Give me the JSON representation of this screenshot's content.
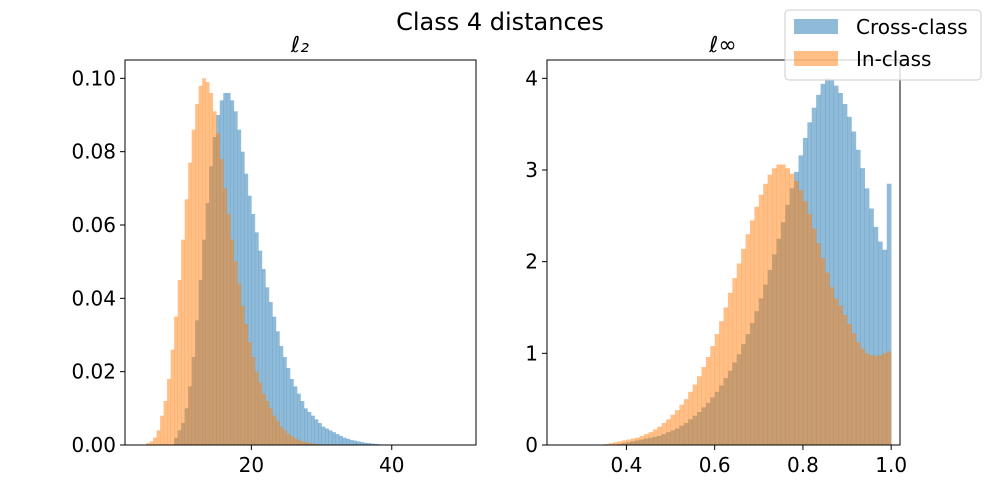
{
  "title": "Class 4 distances",
  "legend": {
    "placement": "top-right",
    "entries": [
      {
        "label": "Cross-class",
        "color": "#1f77b4",
        "alpha": 0.5
      },
      {
        "label": "In-class",
        "color": "#ff7f0e",
        "alpha": 0.5
      }
    ]
  },
  "chart_data": [
    {
      "type": "histogram",
      "title": "ℓ₂",
      "xlim": [
        2,
        52
      ],
      "ylim": [
        0,
        0.105
      ],
      "xticks": [
        20,
        40
      ],
      "xtick_labels": [
        "20",
        "40"
      ],
      "yticks": [
        0,
        0.02,
        0.04,
        0.06,
        0.08,
        0.1
      ],
      "ytick_labels": [
        "0.00",
        "0.02",
        "0.04",
        "0.06",
        "0.08",
        "0.10"
      ],
      "bin_start": 5.0,
      "bin_width": 0.5,
      "series": [
        {
          "name": "Cross-class",
          "color": "#1f77b4",
          "values": [
            0,
            0,
            0,
            0,
            0,
            0,
            0,
            0,
            0.002,
            0.004,
            0.006,
            0.01,
            0.016,
            0.024,
            0.034,
            0.045,
            0.056,
            0.066,
            0.076,
            0.084,
            0.09,
            0.094,
            0.096,
            0.096,
            0.094,
            0.091,
            0.086,
            0.08,
            0.074,
            0.068,
            0.063,
            0.058,
            0.053,
            0.048,
            0.043,
            0.039,
            0.035,
            0.031,
            0.027,
            0.024,
            0.021,
            0.018,
            0.016,
            0.014,
            0.012,
            0.01,
            0.009,
            0.008,
            0.007,
            0.006,
            0.005,
            0.0045,
            0.004,
            0.0035,
            0.003,
            0.0025,
            0.002,
            0.0017,
            0.0014,
            0.0012,
            0.001,
            0.0008,
            0.0006,
            0.0005,
            0.0004,
            0.0003,
            0.0002
          ]
        },
        {
          "name": "In-class",
          "color": "#ff7f0e",
          "values": [
            0.0005,
            0.001,
            0.002,
            0.004,
            0.008,
            0.012,
            0.018,
            0.026,
            0.035,
            0.045,
            0.056,
            0.067,
            0.077,
            0.086,
            0.093,
            0.098,
            0.1,
            0.099,
            0.096,
            0.091,
            0.085,
            0.078,
            0.07,
            0.063,
            0.056,
            0.05,
            0.044,
            0.038,
            0.033,
            0.028,
            0.024,
            0.02,
            0.017,
            0.014,
            0.012,
            0.01,
            0.008,
            0.0065,
            0.005,
            0.004,
            0.003,
            0.0024,
            0.0018,
            0.0014,
            0.001,
            0.0008,
            0.0006,
            0.0004,
            0.0003,
            0.0002
          ]
        }
      ]
    },
    {
      "type": "histogram",
      "title": "ℓ∞",
      "xlim": [
        0.22,
        1.02
      ],
      "ylim": [
        0,
        4.2
      ],
      "xticks": [
        0.4,
        0.6,
        0.8,
        1.0
      ],
      "xtick_labels": [
        "0.4",
        "0.6",
        "0.8",
        "1.0"
      ],
      "yticks": [
        0,
        1,
        2,
        3,
        4
      ],
      "ytick_labels": [
        "0",
        "1",
        "2",
        "3",
        "4"
      ],
      "bin_start": 0.3,
      "bin_width": 0.01,
      "series": [
        {
          "name": "Cross-class",
          "color": "#1f77b4",
          "values": [
            0,
            0,
            0,
            0,
            0,
            0,
            0,
            0,
            0.01,
            0.02,
            0.03,
            0.04,
            0.05,
            0.06,
            0.07,
            0.08,
            0.09,
            0.1,
            0.12,
            0.14,
            0.16,
            0.18,
            0.21,
            0.24,
            0.28,
            0.32,
            0.36,
            0.41,
            0.46,
            0.52,
            0.58,
            0.65,
            0.73,
            0.81,
            0.9,
            0.99,
            1.1,
            1.21,
            1.33,
            1.46,
            1.6,
            1.75,
            1.91,
            2.08,
            2.25,
            2.43,
            2.62,
            2.8,
            2.98,
            3.16,
            3.35,
            3.52,
            3.68,
            3.82,
            3.94,
            4.0,
            3.98,
            3.92,
            3.84,
            3.72,
            3.58,
            3.42,
            3.22,
            3.02,
            2.8,
            2.58,
            2.38,
            2.22,
            2.13,
            2.85
          ]
        },
        {
          "name": "In-class",
          "color": "#ff7f0e",
          "values": [
            0,
            0,
            0,
            0,
            0,
            0.01,
            0.02,
            0.03,
            0.04,
            0.05,
            0.06,
            0.07,
            0.08,
            0.1,
            0.12,
            0.14,
            0.17,
            0.2,
            0.24,
            0.28,
            0.33,
            0.38,
            0.44,
            0.5,
            0.58,
            0.66,
            0.75,
            0.85,
            0.96,
            1.08,
            1.21,
            1.35,
            1.5,
            1.66,
            1.82,
            1.98,
            2.14,
            2.3,
            2.45,
            2.6,
            2.73,
            2.85,
            2.95,
            3.02,
            3.06,
            3.06,
            3.02,
            2.96,
            2.88,
            2.78,
            2.66,
            2.52,
            2.36,
            2.2,
            2.04,
            1.88,
            1.72,
            1.6,
            1.52,
            1.42,
            1.32,
            1.22,
            1.12,
            1.05,
            1.0,
            0.98,
            0.97,
            0.98,
            1.0,
            1.02
          ]
        }
      ]
    }
  ]
}
